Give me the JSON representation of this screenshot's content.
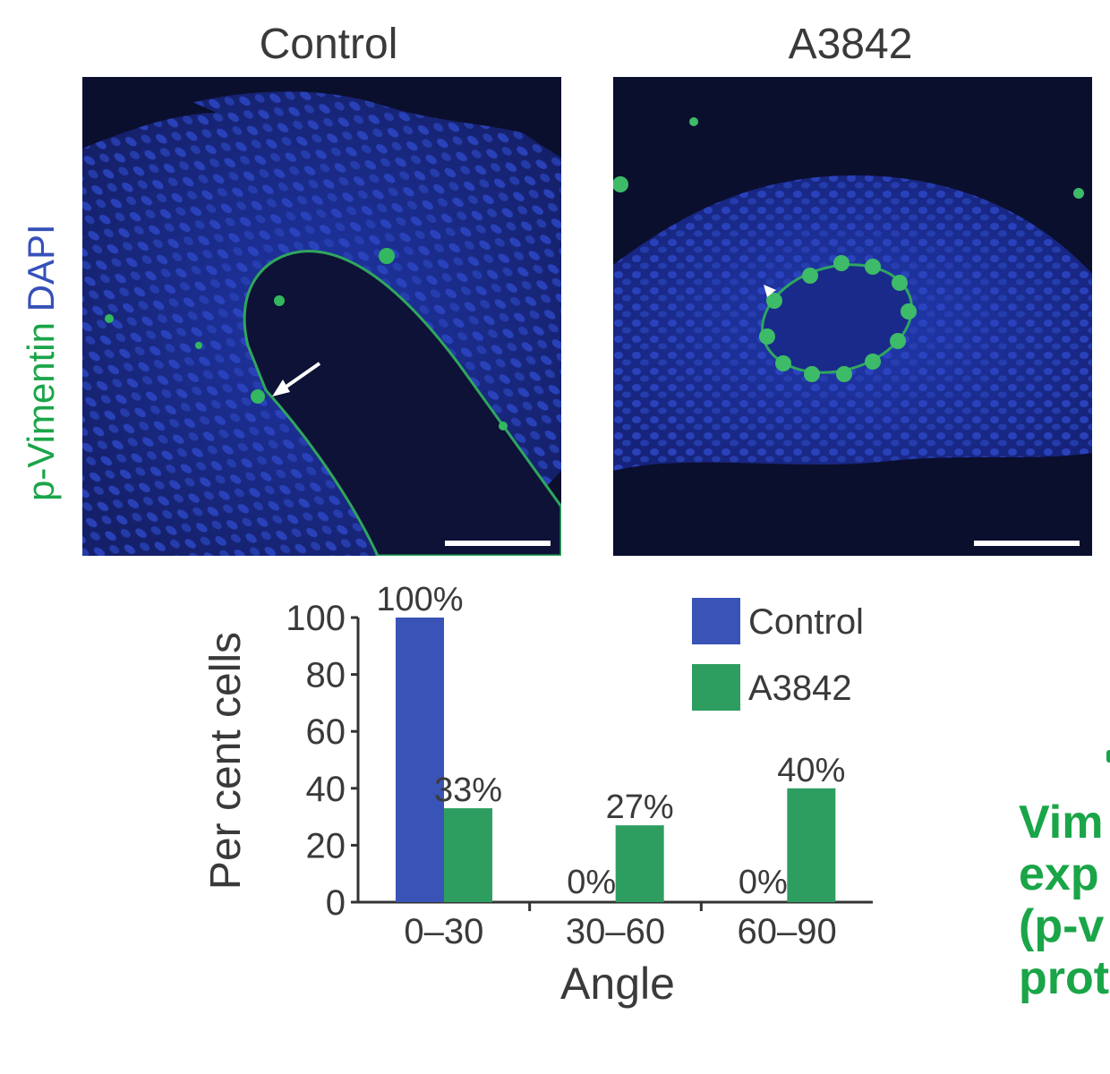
{
  "panels": [
    {
      "title": "Control"
    },
    {
      "title": "A3842"
    }
  ],
  "stain_label": {
    "part1": "p-Vimentin",
    "part2": "DAPI",
    "color1": "#1aa548",
    "color2": "#3650b8"
  },
  "chart_data": {
    "type": "bar",
    "categories": [
      "0–30",
      "30–60",
      "60–90"
    ],
    "series": [
      {
        "name": "Control",
        "color": "#3a53b6",
        "values": [
          100,
          0,
          0
        ],
        "labels": [
          "100%",
          "0%",
          "0%"
        ]
      },
      {
        "name": "A3842",
        "color": "#2e9e60",
        "values": [
          33,
          27,
          40
        ],
        "labels": [
          "33%",
          "27%",
          "40%"
        ]
      }
    ],
    "ylabel": "Per cent cells",
    "xlabel": "Angle",
    "ylim": [
      0,
      100
    ],
    "yticks": [
      0,
      20,
      40,
      60,
      80,
      100
    ],
    "legend_position": "top-right",
    "grid": false
  },
  "side_text": [
    "Vim",
    "exp",
    "(p-v",
    "prot"
  ]
}
